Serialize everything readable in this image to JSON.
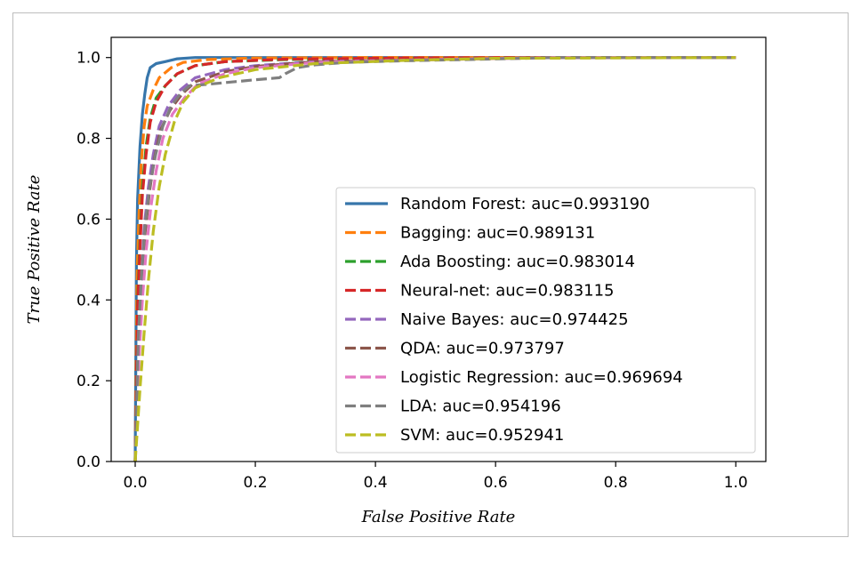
{
  "chart_data": {
    "type": "line",
    "title": "",
    "xlabel": "False Positive Rate",
    "ylabel": "True Positive Rate",
    "xlim": [
      -0.04,
      1.05
    ],
    "ylim": [
      0.0,
      1.05
    ],
    "x_ticks": [
      "0.0",
      "0.2",
      "0.4",
      "0.6",
      "0.8",
      "1.0"
    ],
    "y_ticks": [
      "0.0",
      "0.2",
      "0.4",
      "0.6",
      "0.8",
      "1.0"
    ],
    "legend_position": "center-right",
    "grid": false,
    "series": [
      {
        "name": "Random Forest: auc=0.993190",
        "color": "#3776ab",
        "dash": "solid",
        "x": [
          0,
          0.002,
          0.004,
          0.008,
          0.012,
          0.016,
          0.02,
          0.025,
          0.035,
          0.05,
          0.07,
          0.1,
          0.2,
          0.4,
          0.7,
          1.0
        ],
        "y": [
          0,
          0.5,
          0.65,
          0.78,
          0.86,
          0.91,
          0.95,
          0.975,
          0.985,
          0.99,
          0.997,
          1.0,
          1.0,
          1.0,
          1.0,
          1.0
        ]
      },
      {
        "name": "Bagging: auc=0.989131",
        "color": "#ff7f0e",
        "dash": "dashed",
        "x": [
          0,
          0.003,
          0.006,
          0.01,
          0.015,
          0.02,
          0.03,
          0.04,
          0.06,
          0.08,
          0.12,
          0.2,
          0.4,
          0.7,
          1.0
        ],
        "y": [
          0,
          0.45,
          0.6,
          0.74,
          0.83,
          0.88,
          0.92,
          0.95,
          0.975,
          0.988,
          0.995,
          0.999,
          1.0,
          1.0,
          1.0
        ]
      },
      {
        "name": "Ada Boosting: auc=0.983014",
        "color": "#2ca02c",
        "dash": "dashed",
        "x": [
          0,
          0.004,
          0.008,
          0.012,
          0.018,
          0.025,
          0.035,
          0.05,
          0.07,
          0.1,
          0.15,
          0.25,
          0.45,
          0.7,
          1.0
        ],
        "y": [
          0,
          0.4,
          0.55,
          0.68,
          0.78,
          0.85,
          0.9,
          0.93,
          0.96,
          0.98,
          0.99,
          0.995,
          0.998,
          1.0,
          1.0
        ]
      },
      {
        "name": "Neural-net: auc=0.983115",
        "color": "#d62728",
        "dash": "dashed",
        "x": [
          0,
          0.004,
          0.008,
          0.012,
          0.018,
          0.025,
          0.035,
          0.05,
          0.07,
          0.1,
          0.15,
          0.25,
          0.45,
          0.7,
          1.0
        ],
        "y": [
          0,
          0.38,
          0.53,
          0.66,
          0.76,
          0.84,
          0.89,
          0.93,
          0.96,
          0.98,
          0.99,
          0.996,
          0.999,
          1.0,
          1.0
        ]
      },
      {
        "name": "Naive Bayes: auc=0.974425",
        "color": "#9467bd",
        "dash": "dashed",
        "x": [
          0,
          0.005,
          0.01,
          0.015,
          0.022,
          0.03,
          0.04,
          0.055,
          0.075,
          0.1,
          0.15,
          0.2,
          0.3,
          0.5,
          0.7,
          1.0
        ],
        "y": [
          0,
          0.3,
          0.45,
          0.58,
          0.68,
          0.76,
          0.83,
          0.88,
          0.92,
          0.95,
          0.97,
          0.98,
          0.99,
          0.995,
          1.0,
          1.0
        ]
      },
      {
        "name": "QDA: auc=0.973797",
        "color": "#8c564b",
        "dash": "dashed",
        "x": [
          0,
          0.005,
          0.01,
          0.016,
          0.024,
          0.032,
          0.042,
          0.058,
          0.078,
          0.1,
          0.15,
          0.2,
          0.3,
          0.5,
          0.7,
          1.0
        ],
        "y": [
          0,
          0.28,
          0.43,
          0.56,
          0.67,
          0.75,
          0.82,
          0.87,
          0.91,
          0.94,
          0.965,
          0.978,
          0.99,
          0.995,
          1.0,
          1.0
        ]
      },
      {
        "name": "Logistic Regression: auc=0.969694",
        "color": "#e377c2",
        "dash": "dashed",
        "x": [
          0,
          0.006,
          0.012,
          0.018,
          0.026,
          0.035,
          0.046,
          0.062,
          0.082,
          0.105,
          0.15,
          0.2,
          0.3,
          0.5,
          0.7,
          1.0
        ],
        "y": [
          0,
          0.25,
          0.4,
          0.52,
          0.63,
          0.72,
          0.8,
          0.86,
          0.9,
          0.935,
          0.96,
          0.975,
          0.988,
          0.995,
          1.0,
          1.0
        ]
      },
      {
        "name": "LDA: auc=0.954196",
        "color": "#7f7f7f",
        "dash": "dashed",
        "x": [
          0,
          0.005,
          0.01,
          0.016,
          0.024,
          0.034,
          0.046,
          0.06,
          0.075,
          0.09,
          0.13,
          0.2,
          0.24,
          0.25,
          0.27,
          0.3,
          0.35,
          0.45,
          0.55,
          0.7,
          1.0
        ],
        "y": [
          0,
          0.3,
          0.45,
          0.58,
          0.68,
          0.76,
          0.83,
          0.88,
          0.91,
          0.93,
          0.935,
          0.945,
          0.95,
          0.96,
          0.975,
          0.982,
          0.988,
          0.992,
          0.995,
          1.0,
          1.0
        ]
      },
      {
        "name": "SVM: auc=0.952941",
        "color": "#bcbd22",
        "dash": "dashed",
        "x": [
          0,
          0.008,
          0.015,
          0.022,
          0.03,
          0.04,
          0.05,
          0.065,
          0.08,
          0.1,
          0.14,
          0.2,
          0.3,
          0.45,
          0.6,
          1.0
        ],
        "y": [
          0,
          0.18,
          0.32,
          0.45,
          0.57,
          0.68,
          0.76,
          0.84,
          0.89,
          0.925,
          0.95,
          0.97,
          0.985,
          0.993,
          0.998,
          1.0
        ]
      }
    ]
  }
}
